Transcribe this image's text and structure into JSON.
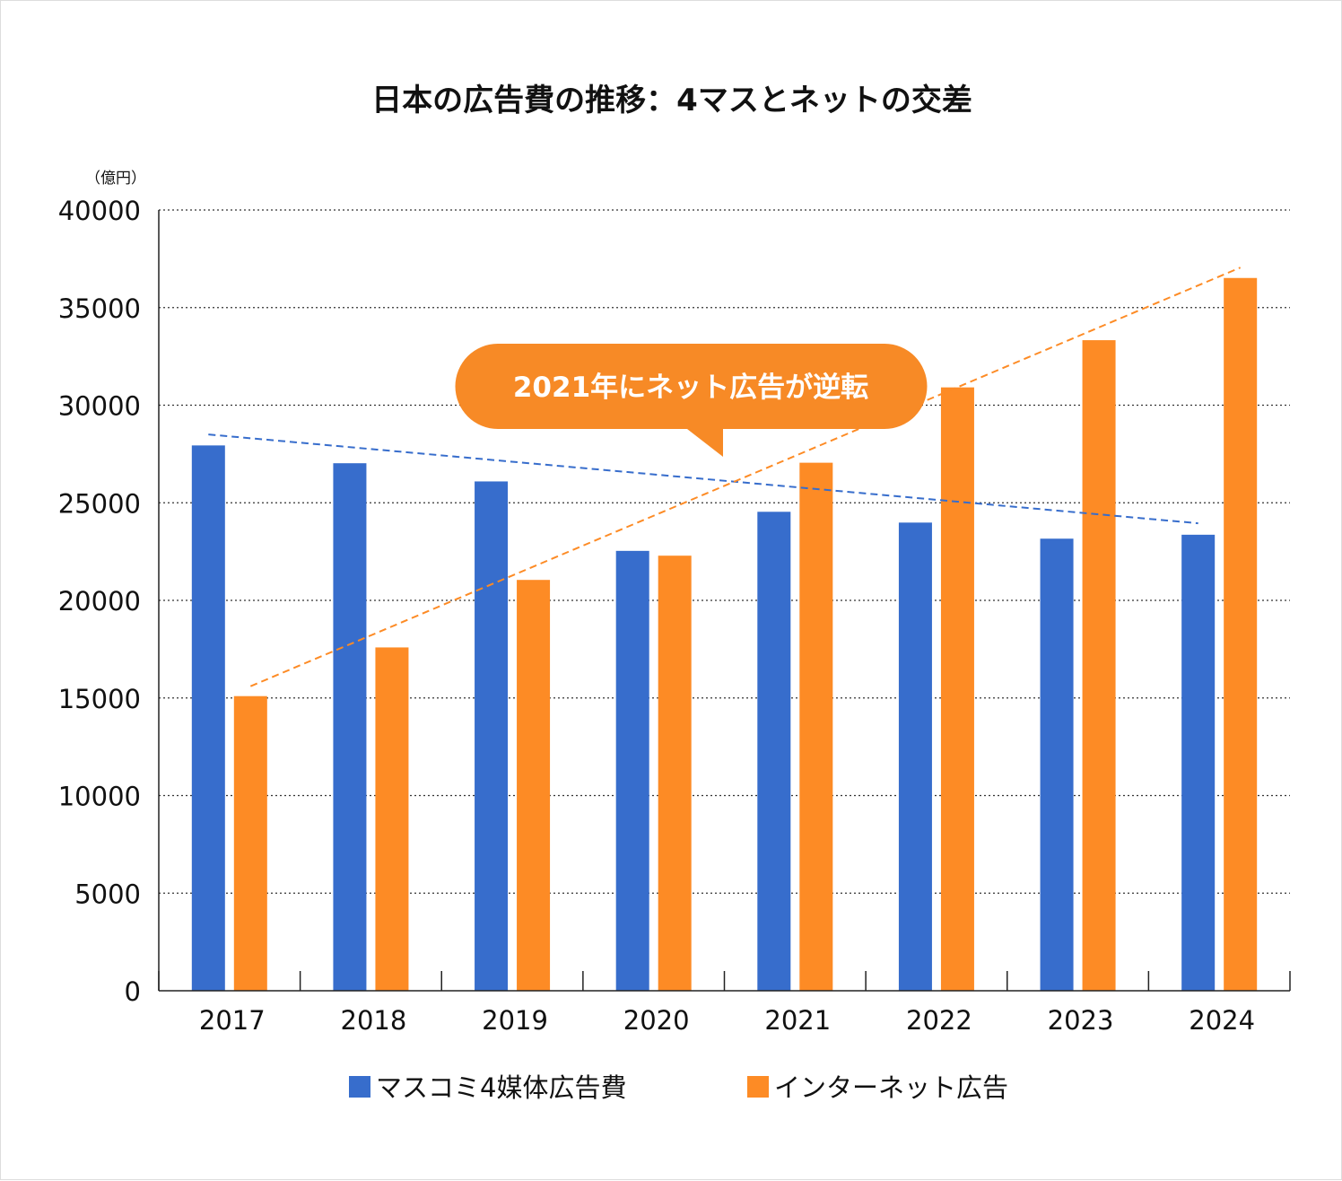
{
  "chart_data": {
    "type": "bar",
    "title": "日本の広告費の推移：4マスとネットの交差",
    "ylabel": "（億円）",
    "xlabel": "",
    "ylim": [
      0,
      40000
    ],
    "yticks": [
      0,
      5000,
      10000,
      15000,
      20000,
      25000,
      30000,
      35000,
      40000
    ],
    "grid": true,
    "legend_placement": "bottom",
    "categories": [
      "2017",
      "2018",
      "2019",
      "2020",
      "2021",
      "2022",
      "2023",
      "2024"
    ],
    "series": [
      {
        "name": "マスコミ4媒体広告費",
        "color": "#376dcc",
        "values": [
          27938,
          27026,
          26094,
          22536,
          24538,
          23985,
          23161,
          23363
        ]
      },
      {
        "name": "インターネット広告",
        "color": "#fd8b25",
        "values": [
          15094,
          17589,
          21048,
          22290,
          27052,
          30912,
          33330,
          36517
        ]
      }
    ],
    "trendlines": [
      {
        "series": "マスコミ4媒体広告費",
        "color": "#376dcc",
        "from": 28500,
        "to": 23950
      },
      {
        "series": "インターネット広告",
        "color": "#fd8b25",
        "from": 15600,
        "to": 37050
      }
    ],
    "annotation": {
      "text": "2021年にネット広告が逆転",
      "color": "#f78a26"
    }
  }
}
